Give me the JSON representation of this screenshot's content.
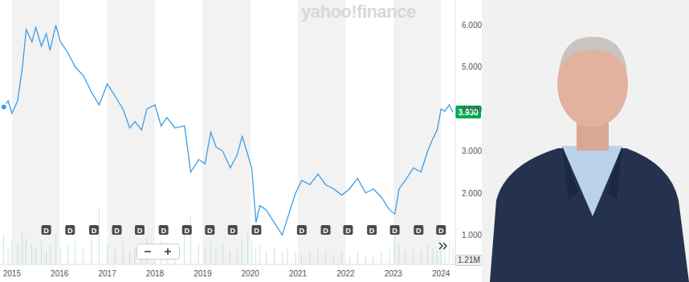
{
  "chart_data": {
    "type": "line",
    "watermark": "yahoo!finance",
    "x": [
      2014.83,
      2014.92,
      2015.0,
      2015.12,
      2015.22,
      2015.3,
      2015.42,
      2015.5,
      2015.62,
      2015.72,
      2015.8,
      2015.92,
      2016.02,
      2016.17,
      2016.33,
      2016.5,
      2016.67,
      2016.83,
      2017.0,
      2017.17,
      2017.33,
      2017.47,
      2017.58,
      2017.72,
      2017.83,
      2018.0,
      2018.13,
      2018.25,
      2018.42,
      2018.62,
      2018.75,
      2018.92,
      2019.05,
      2019.17,
      2019.28,
      2019.42,
      2019.58,
      2019.72,
      2019.83,
      2019.95,
      2020.03,
      2020.12,
      2020.2,
      2020.33,
      2020.5,
      2020.67,
      2020.78,
      2020.95,
      2021.08,
      2021.25,
      2021.42,
      2021.58,
      2021.75,
      2021.92,
      2022.08,
      2022.25,
      2022.42,
      2022.58,
      2022.75,
      2022.92,
      2023.03,
      2023.12,
      2023.25,
      2023.42,
      2023.58,
      2023.72,
      2023.83,
      2023.92,
      2024.0,
      2024.08,
      2024.17,
      2024.25
    ],
    "series": [
      {
        "type": "line",
        "color": "#3a9de8",
        "values": [
          4.05,
          4.2,
          3.9,
          4.2,
          5.0,
          5.9,
          5.6,
          5.95,
          5.5,
          5.8,
          5.4,
          6.0,
          5.6,
          5.35,
          5.0,
          4.8,
          4.4,
          4.1,
          4.6,
          4.3,
          4.0,
          3.55,
          3.7,
          3.5,
          4.0,
          4.1,
          3.6,
          3.8,
          3.55,
          3.6,
          2.5,
          2.8,
          2.7,
          3.45,
          3.1,
          3.0,
          2.6,
          2.9,
          3.35,
          2.9,
          2.6,
          1.3,
          1.7,
          1.6,
          1.3,
          1.0,
          1.4,
          2.0,
          2.3,
          2.2,
          2.45,
          2.2,
          2.1,
          1.95,
          2.1,
          2.35,
          2.0,
          2.1,
          1.9,
          1.6,
          1.5,
          2.1,
          2.3,
          2.6,
          2.5,
          3.0,
          3.3,
          3.5,
          4.0,
          3.95,
          4.1,
          3.93
        ]
      },
      {
        "type": "bar",
        "axis": "y2",
        "color": "#9bd9b3",
        "values": [
          0.9,
          0.5,
          0.7,
          0.6,
          1.0,
          0.8,
          0.6,
          0.5,
          0.7,
          0.4,
          0.6,
          0.9,
          0.5,
          0.6,
          0.7,
          0.5,
          0.8,
          1.7,
          0.6,
          0.5,
          0.7,
          0.4,
          0.5,
          0.6,
          0.8,
          0.5,
          0.7,
          0.6,
          0.5,
          1.2,
          1.5,
          0.6,
          0.5,
          0.7,
          0.5,
          0.6,
          0.4,
          0.5,
          0.8,
          1.0,
          0.7,
          0.5,
          0.6,
          0.4,
          0.5,
          0.4,
          0.5,
          0.4,
          0.3,
          0.4,
          0.5,
          0.4,
          0.3,
          0.4,
          0.3,
          0.4,
          0.3,
          0.3,
          0.4,
          0.5,
          0.9,
          0.6,
          0.4,
          0.5,
          0.4,
          0.6,
          0.5,
          0.4,
          0.5,
          0.6,
          0.7,
          0.5
        ]
      }
    ],
    "xlim": [
      2014.75,
      2024.3
    ],
    "xticks": [
      2015,
      2016,
      2017,
      2018,
      2019,
      2020,
      2021,
      2022,
      2023,
      2024
    ],
    "ylim": [
      0.3,
      6.6
    ],
    "yticks": [
      {
        "value": 1,
        "label": "1.000"
      },
      {
        "value": 2,
        "label": "2.000"
      },
      {
        "value": 3,
        "label": "3.000"
      },
      {
        "value": 4,
        "label": "4.000"
      },
      {
        "value": 5,
        "label": "5.000"
      },
      {
        "value": 6,
        "label": "6.000"
      }
    ],
    "y2lim": [
      0,
      8
    ],
    "grid": true,
    "annotations": [
      {
        "text": "3.930",
        "y": 3.93,
        "color": "#00a550"
      },
      {
        "text": "1.21M"
      }
    ],
    "dividend_marks": {
      "label": "D",
      "x": [
        2015.72,
        2016.22,
        2016.72,
        2017.2,
        2017.68,
        2018.18,
        2018.67,
        2019.15,
        2019.63,
        2020.13,
        2021.08,
        2021.58,
        2022.05,
        2022.55,
        2023.03,
        2023.53,
        2024.0
      ]
    }
  }
}
